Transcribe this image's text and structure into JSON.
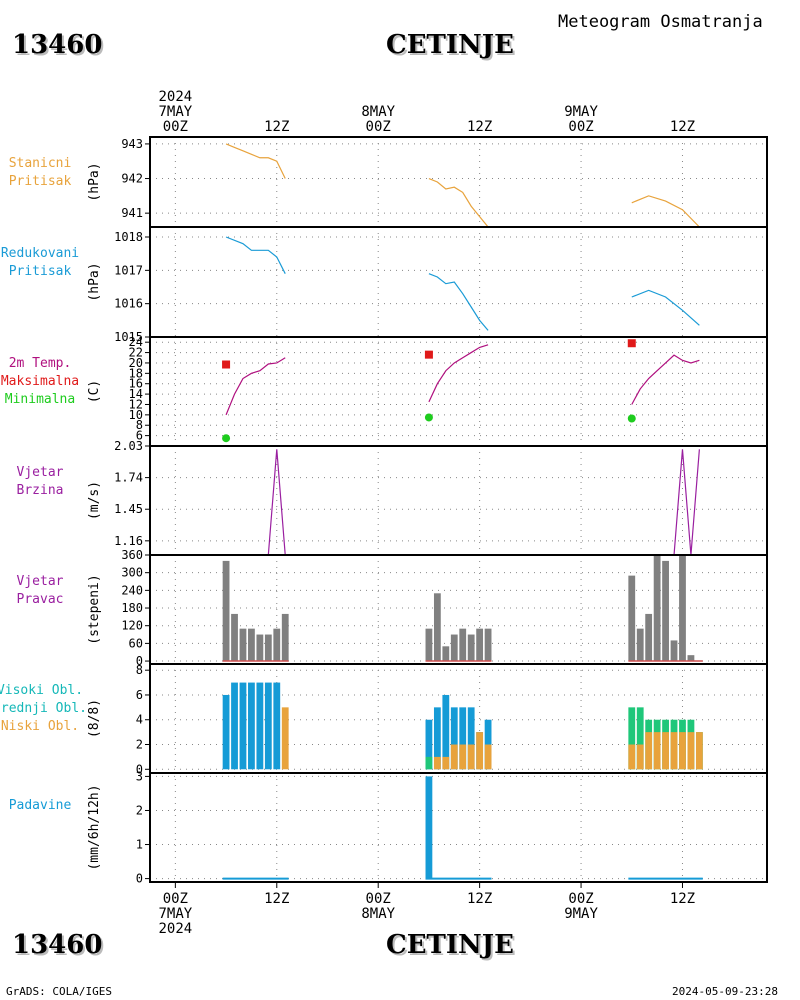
{
  "header": {
    "station_id": "13460",
    "station_name": "CETINJE",
    "meteogram_title": "Meteogram Osmatranja"
  },
  "footer": {
    "station_id": "13460",
    "station_name": "CETINJE",
    "credit": "GrADS: COLA/IGES",
    "timestamp": "2024-05-09-23:28"
  },
  "time_axis": {
    "top_labels": [
      {
        "lines": [
          "2024",
          "7MAY",
          "00Z"
        ],
        "t": 0
      },
      {
        "lines": [
          "12Z"
        ],
        "t": 12
      },
      {
        "lines": [
          "8MAY",
          "00Z"
        ],
        "t": 24
      },
      {
        "lines": [
          "12Z"
        ],
        "t": 36
      },
      {
        "lines": [
          "9MAY",
          "00Z"
        ],
        "t": 48
      },
      {
        "lines": [
          "12Z"
        ],
        "t": 60
      }
    ],
    "bottom_labels": [
      {
        "lines": [
          "00Z",
          "7MAY",
          "2024"
        ],
        "t": 0
      },
      {
        "lines": [
          "12Z"
        ],
        "t": 12
      },
      {
        "lines": [
          "00Z",
          "8MAY"
        ],
        "t": 24
      },
      {
        "lines": [
          "12Z"
        ],
        "t": 36
      },
      {
        "lines": [
          "00Z",
          "9MAY"
        ],
        "t": 48
      },
      {
        "lines": [
          "12Z"
        ],
        "t": 60
      }
    ],
    "range_hours": [
      -3,
      70
    ]
  },
  "chart_data": [
    {
      "type": "line",
      "left_labels": [
        {
          "text": "Stanicni",
          "color": "#e8a33c"
        },
        {
          "text": "Pritisak",
          "color": "#e8a33c"
        }
      ],
      "ylabel": "(hPa)",
      "ylim": [
        940.6,
        943.2
      ],
      "yticks": [
        941,
        942,
        943
      ],
      "series": [
        {
          "color": "#e8a33c",
          "segments": [
            [
              [
                6,
                943.0
              ],
              [
                7,
                942.9
              ],
              [
                8,
                942.8
              ],
              [
                9,
                942.7
              ],
              [
                10,
                942.6
              ],
              [
                11,
                942.6
              ],
              [
                12,
                942.5
              ],
              [
                13,
                942.0
              ]
            ],
            [
              [
                30,
                942.0
              ],
              [
                31,
                941.9
              ],
              [
                32,
                941.7
              ],
              [
                33,
                941.75
              ],
              [
                34,
                941.6
              ],
              [
                35,
                941.2
              ],
              [
                36,
                940.9
              ],
              [
                37,
                940.6
              ]
            ],
            [
              [
                54,
                941.3
              ],
              [
                56,
                941.5
              ],
              [
                58,
                941.35
              ],
              [
                60,
                941.1
              ],
              [
                62,
                940.6
              ]
            ]
          ]
        }
      ]
    },
    {
      "type": "line",
      "left_labels": [
        {
          "text": "Redukovani",
          "color": "#1a9bd6"
        },
        {
          "text": "Pritisak",
          "color": "#1a9bd6"
        }
      ],
      "ylabel": "(hPa)",
      "ylim": [
        1015,
        1018.3
      ],
      "yticks": [
        1015,
        1016,
        1017,
        1018
      ],
      "series": [
        {
          "color": "#1a9bd6",
          "segments": [
            [
              [
                6,
                1018.0
              ],
              [
                8,
                1017.8
              ],
              [
                9,
                1017.6
              ],
              [
                11,
                1017.6
              ],
              [
                12,
                1017.4
              ],
              [
                13,
                1016.9
              ]
            ],
            [
              [
                30,
                1016.9
              ],
              [
                31,
                1016.8
              ],
              [
                32,
                1016.6
              ],
              [
                33,
                1016.65
              ],
              [
                34,
                1016.3
              ],
              [
                35,
                1015.9
              ],
              [
                36,
                1015.5
              ],
              [
                37,
                1015.2
              ]
            ],
            [
              [
                54,
                1016.2
              ],
              [
                56,
                1016.4
              ],
              [
                58,
                1016.2
              ],
              [
                60,
                1015.8
              ],
              [
                62,
                1015.35
              ]
            ]
          ]
        }
      ]
    },
    {
      "type": "line",
      "left_labels": [
        {
          "text": "2m Temp.",
          "color": "#b0107f"
        },
        {
          "text": "Maksimalna",
          "color": "#e01a1a"
        },
        {
          "text": "Minimalna",
          "color": "#1ecc1e"
        }
      ],
      "ylabel": "(C)",
      "ylim": [
        4,
        25
      ],
      "yticks": [
        6,
        8,
        10,
        12,
        14,
        16,
        18,
        20,
        22,
        24
      ],
      "series": [
        {
          "color": "#b0107f",
          "segments": [
            [
              [
                6,
                10.0
              ],
              [
                7,
                14.0
              ],
              [
                8,
                17.0
              ],
              [
                9,
                18.0
              ],
              [
                10,
                18.5
              ],
              [
                11,
                19.8
              ],
              [
                12,
                20.0
              ],
              [
                13,
                21.0
              ]
            ],
            [
              [
                30,
                12.5
              ],
              [
                31,
                16.0
              ],
              [
                32,
                18.5
              ],
              [
                33,
                20.0
              ],
              [
                34,
                21.0
              ],
              [
                35,
                22.0
              ],
              [
                36,
                23.0
              ],
              [
                37,
                23.5
              ]
            ],
            [
              [
                54,
                12.0
              ],
              [
                55,
                15.0
              ],
              [
                56,
                17.0
              ],
              [
                57,
                18.5
              ],
              [
                58,
                20.0
              ],
              [
                59,
                21.5
              ],
              [
                60,
                20.5
              ],
              [
                61,
                20.0
              ],
              [
                62,
                20.5
              ]
            ]
          ]
        }
      ],
      "max_points": {
        "color": "#e01a1a",
        "points": [
          [
            6,
            19.7
          ],
          [
            30,
            21.6
          ],
          [
            54,
            23.8
          ]
        ]
      },
      "min_points": {
        "color": "#1ecc1e",
        "points": [
          [
            6,
            5.5
          ],
          [
            30,
            9.5
          ],
          [
            54,
            9.3
          ]
        ]
      }
    },
    {
      "type": "line",
      "left_labels": [
        {
          "text": "Vjetar",
          "color": "#9a1fa0"
        },
        {
          "text": "Brzina",
          "color": "#9a1fa0"
        }
      ],
      "ylabel": "(m/s)",
      "ylim": [
        1.03,
        2.03
      ],
      "yticks": [
        1.16,
        1.45,
        1.74,
        2.03
      ],
      "ytick_labels": [
        "1.16",
        "1.45",
        "1.74",
        "2.03"
      ],
      "series": [
        {
          "color": "#9a1fa0",
          "segments": [
            [
              [
                6,
                1.03
              ],
              [
                11,
                1.03
              ],
              [
                12,
                2.0
              ],
              [
                13,
                1.03
              ]
            ],
            [
              [
                30,
                1.03
              ],
              [
                37,
                1.03
              ]
            ],
            [
              [
                54,
                1.03
              ],
              [
                59,
                1.03
              ],
              [
                60,
                2.0
              ],
              [
                61,
                1.03
              ],
              [
                62,
                2.0
              ]
            ]
          ]
        }
      ]
    },
    {
      "type": "bar",
      "left_labels": [
        {
          "text": "Vjetar",
          "color": "#9a1fa0"
        },
        {
          "text": "Pravac",
          "color": "#9a1fa0"
        }
      ],
      "ylabel": "(stepeni)",
      "ylim": [
        -10,
        360
      ],
      "yticks": [
        0,
        60,
        120,
        180,
        240,
        300,
        360
      ],
      "bar_color": "#808080",
      "baseline_color": "#d05050",
      "x": [
        6,
        7,
        8,
        9,
        10,
        11,
        12,
        13,
        30,
        31,
        32,
        33,
        34,
        35,
        36,
        37,
        54,
        55,
        56,
        57,
        58,
        59,
        60,
        61
      ],
      "values": [
        340,
        160,
        110,
        110,
        90,
        90,
        110,
        160,
        110,
        230,
        50,
        90,
        110,
        90,
        110,
        110,
        290,
        110,
        160,
        360,
        340,
        70,
        360,
        20
      ]
    },
    {
      "type": "bar",
      "left_labels": [
        {
          "text": "Visoki Obl.",
          "color": "#15b8b8"
        },
        {
          "text": "Srednji Obl.",
          "color": "#15b8b8"
        },
        {
          "text": "Niski Obl.",
          "color": "#e8a33c"
        }
      ],
      "ylabel": "(8/8)",
      "ylim": [
        -0.3,
        8.5
      ],
      "yticks": [
        0,
        2,
        4,
        6,
        8
      ],
      "series": [
        {
          "name": "Visoki Obl.",
          "color": "#159bd6",
          "x": [
            6,
            7,
            8,
            9,
            10,
            11,
            12,
            30,
            31,
            32,
            33,
            34,
            35,
            36,
            37
          ],
          "values": [
            6,
            7,
            7,
            7,
            7,
            7,
            7,
            4,
            5,
            6,
            5,
            5,
            5,
            3,
            4
          ]
        },
        {
          "name": "Srednji Obl.",
          "color": "#1fc77a",
          "x": [
            30,
            54,
            55,
            56,
            57,
            58,
            59,
            60,
            61,
            62
          ],
          "values": [
            1,
            5,
            5,
            4,
            4,
            4,
            4,
            4,
            4,
            3
          ]
        },
        {
          "name": "Niski Obl.",
          "color": "#e8a33c",
          "x": [
            13,
            31,
            32,
            33,
            34,
            35,
            36,
            37,
            54,
            55,
            56,
            57,
            58,
            59,
            60,
            61,
            62
          ],
          "values": [
            5,
            1,
            1,
            2,
            2,
            2,
            3,
            2,
            2,
            2,
            3,
            3,
            3,
            3,
            3,
            3,
            3
          ]
        }
      ]
    },
    {
      "type": "bar",
      "left_labels": [
        {
          "text": "Padavine",
          "color": "#159bd6"
        }
      ],
      "ylabel": "(mm/6h/12h)",
      "ylim": [
        -0.1,
        3.1
      ],
      "yticks": [
        0,
        1,
        2,
        3
      ],
      "bar_color": "#159bd6",
      "x": [
        30
      ],
      "values": [
        3.0
      ],
      "trace_segments": [
        [
          6,
          13
        ],
        [
          30,
          37
        ],
        [
          54,
          62
        ]
      ]
    }
  ]
}
